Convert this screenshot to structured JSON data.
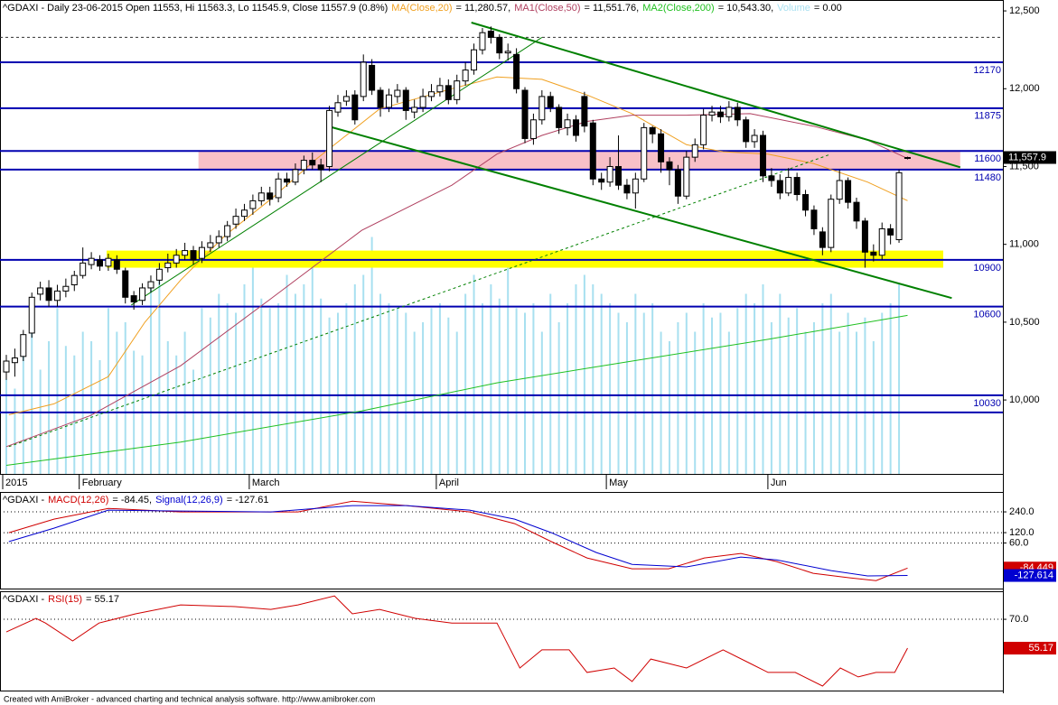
{
  "chart_data": [
    {
      "type": "candlestick",
      "title": "^GDAXI - Daily 23-06-2015 Open 11553, Hi 11563.3, Lo 11545.9, Close 11557.9 (0.8%)",
      "categories": [
        "2015",
        null,
        null,
        null,
        null,
        null,
        null,
        null,
        null,
        "February",
        null,
        null,
        null,
        null,
        null,
        null,
        null,
        null,
        null,
        null,
        null,
        null,
        null,
        null,
        null,
        null,
        null,
        null,
        null,
        "March",
        null,
        null,
        null,
        null,
        null,
        null,
        null,
        null,
        null,
        null,
        null,
        null,
        null,
        null,
        null,
        null,
        null,
        null,
        null,
        null,
        null,
        "April",
        null,
        null,
        null,
        null,
        null,
        null,
        null,
        null,
        null,
        null,
        null,
        null,
        null,
        null,
        null,
        null,
        null,
        null,
        null,
        "May",
        null,
        null,
        null,
        null,
        null,
        null,
        null,
        null,
        null,
        null,
        null,
        null,
        null,
        null,
        null,
        null,
        null,
        null,
        "Jun",
        null,
        null,
        null,
        null,
        null,
        null,
        null,
        null,
        null,
        null,
        null,
        null,
        null,
        null,
        null,
        null
      ],
      "open": [
        10180,
        10240,
        10280,
        10430,
        10680,
        10720,
        10640,
        10700,
        10740,
        10800,
        10870,
        10900,
        10860,
        10900,
        10830,
        10670,
        10640,
        10720,
        10770,
        10850,
        10880,
        10930,
        10960,
        10910,
        10980,
        11010,
        11050,
        11130,
        11180,
        11230,
        11280,
        11330,
        11300,
        11420,
        11400,
        11480,
        11540,
        11510,
        11500,
        11850,
        11920,
        11960,
        11950,
        12150,
        11990,
        11880,
        11950,
        11990,
        11850,
        11880,
        11950,
        11980,
        12020,
        11930,
        12050,
        12120,
        12250,
        12370,
        12330,
        12230,
        12220,
        11990,
        11680,
        11800,
        11950,
        11880,
        11750,
        11800,
        11950,
        11780,
        11420,
        11400,
        11500,
        11380,
        11330,
        11420,
        11750,
        11710,
        11530,
        11480,
        11310,
        11560,
        11640,
        11830,
        11850,
        11820,
        11880,
        11800,
        11660,
        11700,
        11440,
        11410,
        11330,
        11430,
        11320,
        11220,
        11080,
        10980,
        11290,
        11410,
        11270,
        11150,
        10950,
        10930,
        11100,
        11030,
        11553
      ],
      "high": [
        10290,
        10330,
        10450,
        10690,
        10760,
        10770,
        10740,
        10780,
        10830,
        10980,
        10950,
        10930,
        10940,
        10930,
        10850,
        10700,
        10750,
        10800,
        10880,
        10940,
        10970,
        11010,
        10990,
        11020,
        11060,
        11090,
        11150,
        11230,
        11260,
        11320,
        11370,
        11370,
        11460,
        11460,
        11520,
        11570,
        11590,
        11550,
        11890,
        11960,
        11990,
        11990,
        12220,
        12190,
        12010,
        12000,
        12030,
        12010,
        11930,
        12000,
        12030,
        12070,
        12060,
        12090,
        12170,
        12290,
        12390,
        12400,
        12350,
        12290,
        12260,
        12010,
        11840,
        11990,
        11980,
        11900,
        11840,
        11830,
        11980,
        11800,
        11460,
        11560,
        11700,
        11420,
        11460,
        11780,
        11760,
        11740,
        11560,
        11510,
        11600,
        11680,
        11870,
        11890,
        11890,
        11920,
        11910,
        11820,
        11740,
        11730,
        11490,
        11450,
        11490,
        11460,
        11350,
        11250,
        11110,
        11320,
        11480,
        11430,
        11300,
        11170,
        11000,
        11140,
        11130,
        11480,
        11563.3
      ],
      "low": [
        10130,
        10150,
        10250,
        10400,
        10640,
        10600,
        10600,
        10660,
        10700,
        10780,
        10840,
        10830,
        10830,
        10810,
        10620,
        10580,
        10610,
        10690,
        10740,
        10820,
        10850,
        10900,
        10870,
        10880,
        10950,
        10980,
        11020,
        11100,
        11150,
        11190,
        11250,
        11250,
        11270,
        11370,
        11380,
        11450,
        11480,
        11400,
        11470,
        11820,
        11890,
        11770,
        11920,
        11960,
        11820,
        11850,
        11910,
        11800,
        11810,
        11850,
        11920,
        11950,
        11900,
        11900,
        12020,
        12090,
        12220,
        12290,
        12190,
        12180,
        11970,
        11650,
        11640,
        11770,
        11850,
        11710,
        11700,
        11660,
        11720,
        11380,
        11350,
        11370,
        11350,
        11290,
        11230,
        11400,
        11650,
        11460,
        11380,
        11260,
        11290,
        11530,
        11610,
        11790,
        11780,
        11790,
        11760,
        11620,
        11620,
        11400,
        11370,
        11290,
        11310,
        11280,
        11180,
        11060,
        10930,
        10950,
        11260,
        11230,
        11100,
        10850,
        10890,
        10900,
        11000,
        11010,
        11545.9
      ],
      "close": [
        10250,
        10270,
        10420,
        10660,
        10720,
        10640,
        10700,
        10730,
        10800,
        10880,
        10910,
        10860,
        10910,
        10840,
        10660,
        10630,
        10720,
        10760,
        10840,
        10880,
        10930,
        10960,
        10900,
        10980,
        11010,
        11050,
        11120,
        11180,
        11220,
        11280,
        11330,
        11290,
        11420,
        11400,
        11480,
        11540,
        11510,
        11480,
        11860,
        11910,
        11950,
        11800,
        12170,
        11990,
        11880,
        11960,
        11990,
        11860,
        11880,
        11950,
        11980,
        12020,
        11930,
        12050,
        12120,
        12250,
        12360,
        12330,
        12230,
        12240,
        12000,
        11680,
        11800,
        11950,
        11880,
        11750,
        11800,
        11700,
        11760,
        11420,
        11400,
        11500,
        11380,
        11330,
        11420,
        11750,
        11710,
        11530,
        11480,
        11310,
        11560,
        11640,
        11830,
        11850,
        11820,
        11880,
        11800,
        11660,
        11700,
        11440,
        11410,
        11330,
        11430,
        11320,
        11220,
        11100,
        10980,
        11290,
        11410,
        11270,
        11150,
        10950,
        10930,
        11100,
        11060,
        11460,
        11557.9
      ],
      "ylim": [
        9525,
        12570
      ],
      "yticks": [
        {
          "value": 10000,
          "label": "10,000"
        },
        {
          "value": 10500,
          "label": "10,500"
        },
        {
          "value": 11000,
          "label": "11,000"
        },
        {
          "value": 11500,
          "label": "11,500"
        },
        {
          "value": 12000,
          "label": "12,000"
        },
        {
          "value": 12500,
          "label": "12,500"
        }
      ],
      "grid": false,
      "last_value": {
        "value": 11557.9,
        "label": "11,557.9"
      },
      "series": [
        {
          "name": "MA(Close,20)",
          "legend": "= 11,280.57,",
          "color": "#f0a020",
          "x": [
            0.3,
            5.6,
            12,
            16.3,
            20.5,
            25.8,
            31.1,
            36.5,
            43.9,
            52.4,
            57.7,
            63,
            68.3,
            73.6,
            80,
            84.3,
            89.6,
            94.9,
            101.3,
            106
          ],
          "values": [
            9905,
            9975,
            10150,
            10500,
            10770,
            11060,
            11290,
            11550,
            11870,
            12000,
            12075,
            12060,
            11960,
            11840,
            11640,
            11595,
            11580,
            11520,
            11400,
            11280.57
          ]
        },
        {
          "name": "MA1(Close,50)",
          "legend": "= 11,551.76,",
          "color": "#b04060",
          "x": [
            0,
            9.9,
            20.5,
            31.1,
            41.8,
            52.4,
            57.7,
            63,
            68.3,
            73.6,
            80,
            87.5,
            94.9,
            101.3,
            106
          ],
          "values": [
            9700,
            9900,
            10220,
            10650,
            11090,
            11380,
            11580,
            11700,
            11790,
            11830,
            11830,
            11840,
            11760,
            11670,
            11551.76
          ]
        },
        {
          "name": "MA2(Close,200)",
          "legend": "= 10,543.30,",
          "color": "#20c020",
          "x": [
            0,
            20.5,
            41.8,
            57.7,
            73.6,
            89.6,
            106
          ],
          "values": [
            9580,
            9730,
            9930,
            10110,
            10250,
            10390,
            10543.3
          ]
        }
      ],
      "volume": {
        "name": "Volume",
        "legend": "= 0.00",
        "color": "#a8e0f0",
        "lim": [
          0,
          100
        ],
        "values": [
          20,
          18,
          25,
          30,
          22,
          28,
          35,
          27,
          25,
          30,
          28,
          24,
          35,
          30,
          32,
          26,
          25,
          40,
          45,
          28,
          25,
          30,
          22,
          35,
          33,
          38,
          36,
          34,
          40,
          44,
          37,
          35,
          36,
          42,
          38,
          40,
          45,
          37,
          33,
          34,
          36,
          40,
          42,
          50,
          38,
          36,
          35,
          34,
          30,
          32,
          35,
          36,
          33,
          30,
          38,
          42,
          36,
          40,
          37,
          45,
          35,
          34,
          36,
          30,
          38,
          32,
          36,
          40,
          42,
          40,
          38,
          36,
          34,
          32,
          38,
          34,
          36,
          30,
          28,
          32,
          34,
          30,
          36,
          33,
          34,
          30,
          35,
          38,
          36,
          40,
          32,
          38,
          33,
          35,
          30,
          32,
          36,
          38,
          30,
          34,
          30,
          33,
          28,
          34,
          36,
          40,
          0
        ]
      },
      "levels": [
        12170,
        11875,
        11600,
        11480,
        10900,
        10600,
        10030
      ],
      "level_color": "#0000b0",
      "unlabeled_levels": [
        9920
      ],
      "dotted_levels": [
        12330
      ],
      "zones": [
        {
          "color": "#f8c0c8",
          "x": [
            22.6,
            112.2
          ],
          "range": [
            11480,
            11600
          ]
        },
        {
          "color": "#ffff00",
          "x": [
            11.8,
            110.2
          ],
          "range": [
            10850,
            10960
          ]
        }
      ],
      "trendlines": [
        {
          "x": [
            54.7,
            112.2
          ],
          "values": [
            12425,
            11495
          ],
          "color": "#008000",
          "width": 2
        },
        {
          "x": [
            38.1,
            111.2
          ],
          "values": [
            11755,
            10655
          ],
          "color": "#008000",
          "width": 2
        },
        {
          "x": [
            14.7,
            63.0
          ],
          "values": [
            10610,
            12330
          ],
          "color": "#008000",
          "width": 1
        },
        {
          "x": [
            0.3,
            97.0
          ],
          "values": [
            9700,
            11580
          ],
          "color": "#008000",
          "width": 1,
          "dashed": true
        }
      ]
    },
    {
      "type": "line",
      "title": "^GDAXI -",
      "ylim": [
        -203,
        355
      ],
      "yticks": [
        {
          "value": 60,
          "label": "60.0"
        },
        {
          "value": 120,
          "label": "120.0"
        },
        {
          "value": 240,
          "label": "240.0"
        }
      ],
      "grid": "dotted",
      "series": [
        {
          "name": "MACD(12,26)",
          "legend": "= -84.45,",
          "color": "#d00000",
          "value_label": "-84.449",
          "x": [
            0.3,
            5.6,
            12,
            20.5,
            29,
            34.3,
            40.7,
            47.1,
            54.5,
            59.8,
            64.1,
            68.3,
            73.6,
            77.9,
            82.1,
            86.4,
            90.6,
            94.9,
            99.2,
            102.3,
            106
          ],
          "values": [
            120,
            198,
            260,
            240,
            240,
            240,
            302,
            276,
            240,
            172,
            68,
            -26,
            -89,
            -89,
            -26,
            0,
            -47,
            -115,
            -141,
            -157,
            -84.449
          ]
        },
        {
          "name": "Signal(12,26,9)",
          "legend": "= -127.61",
          "color": "#0000d0",
          "value_label": "-127.614",
          "x": [
            0.3,
            5.6,
            12,
            20.5,
            31.1,
            40.7,
            47.1,
            54.5,
            59.8,
            64.1,
            69.4,
            73.6,
            80,
            86.4,
            90.6,
            97,
            101.3,
            106
          ],
          "values": [
            68,
            146,
            250,
            245,
            240,
            276,
            276,
            250,
            198,
            120,
            5,
            -63,
            -78,
            -21,
            -37,
            -99,
            -130,
            -127.614
          ]
        }
      ]
    },
    {
      "type": "line",
      "title": "^GDAXI -",
      "ylim": [
        33.4,
        84.4
      ],
      "yticks": [
        {
          "value": 70,
          "label": "70.0"
        }
      ],
      "grid": "dotted",
      "series": [
        {
          "name": "RSI(15)",
          "legend": "= 55.17",
          "color": "#d00000",
          "value_label": "55.17",
          "x": [
            0,
            3.5,
            4.6,
            7.8,
            10.9,
            15.2,
            20.5,
            26.9,
            31.1,
            34.3,
            38.6,
            40.7,
            43.9,
            48.1,
            52.4,
            57.7,
            60.4,
            63,
            66.2,
            68.3,
            71.5,
            73.6,
            75.8,
            80,
            84.3,
            87.5,
            89.6,
            92.8,
            96,
            98.1,
            100.2,
            102.3,
            104.5,
            106
          ],
          "values": [
            63.5,
            70.5,
            68.1,
            58.9,
            68.1,
            72.8,
            77.4,
            76.5,
            75.1,
            77.4,
            82.0,
            72.8,
            75.1,
            70.5,
            68.1,
            68.1,
            45.0,
            54.3,
            54.3,
            42.7,
            45.0,
            38.1,
            49.6,
            45.0,
            54.3,
            47.3,
            42.7,
            42.7,
            35.7,
            45.0,
            40.4,
            42.7,
            42.7,
            55.17
          ]
        }
      ]
    }
  ],
  "footer": "Created with AmiBroker - advanced charting and technical analysis software. http://www.amibroker.com"
}
